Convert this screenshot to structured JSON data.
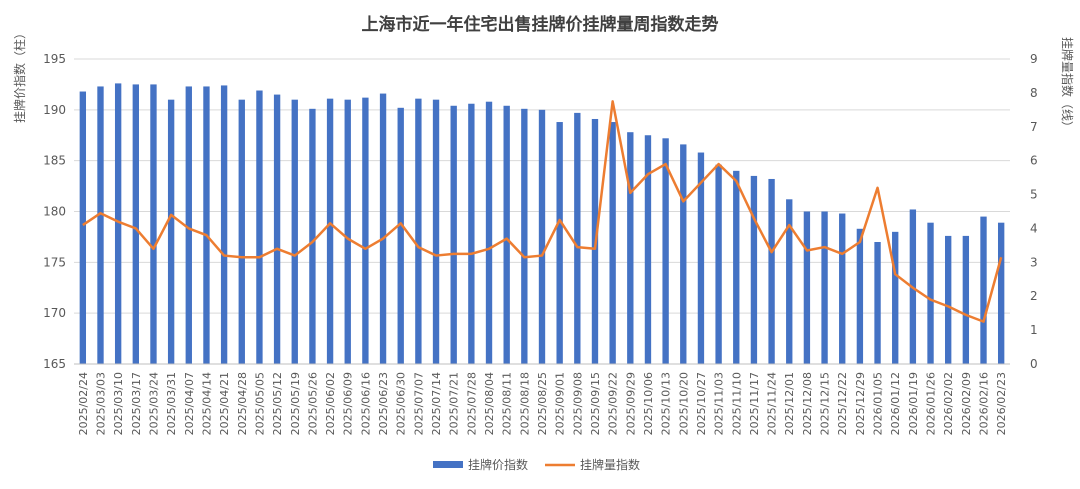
{
  "chart_data": {
    "type": "bar+line",
    "title": "上海市近一年住宅出售挂牌价挂牌量周指数走势",
    "ylabel_left": "挂牌价指数（柱）",
    "ylabel_right": "挂牌量指数（线）",
    "ylim_left": [
      165,
      195
    ],
    "yticks_left": [
      165,
      170,
      175,
      180,
      185,
      190,
      195
    ],
    "ylim_right": [
      0,
      9
    ],
    "yticks_right": [
      0,
      1,
      2,
      3,
      4,
      5,
      6,
      7,
      8,
      9
    ],
    "legend_position": "bottom",
    "grid": true,
    "colors": {
      "bar": "#4472C4",
      "line": "#ED7D31",
      "grid": "#D9D9D9",
      "axis_text": "#595959",
      "title": "#404040"
    },
    "categories": [
      "2025/02/24",
      "2025/03/03",
      "2025/03/10",
      "2025/03/17",
      "2025/03/24",
      "2025/03/31",
      "2025/04/07",
      "2025/04/14",
      "2025/04/21",
      "2025/04/28",
      "2025/05/05",
      "2025/05/12",
      "2025/05/19",
      "2025/05/26",
      "2025/06/02",
      "2025/06/09",
      "2025/06/16",
      "2025/06/23",
      "2025/06/30",
      "2025/07/07",
      "2025/07/14",
      "2025/07/21",
      "2025/07/28",
      "2025/08/04",
      "2025/08/11",
      "2025/08/18",
      "2025/08/25",
      "2025/09/01",
      "2025/09/08",
      "2025/09/15",
      "2025/09/22",
      "2025/09/29",
      "2025/10/06",
      "2025/10/13",
      "2025/10/20",
      "2025/10/27",
      "2025/11/03",
      "2025/11/10",
      "2025/11/17",
      "2025/11/24",
      "2025/12/01",
      "2025/12/08",
      "2025/12/15",
      "2025/12/22",
      "2025/12/29",
      "2026/01/05",
      "2026/01/12",
      "2026/01/19",
      "2026/01/26",
      "2026/02/02",
      "2026/02/09",
      "2026/02/16",
      "2026/02/23"
    ],
    "series": [
      {
        "name": "挂牌价指数",
        "type": "bar",
        "axis": "left",
        "values": [
          191.8,
          192.3,
          192.6,
          192.5,
          192.5,
          191.0,
          192.3,
          192.3,
          192.4,
          191.0,
          191.9,
          191.5,
          191.0,
          190.1,
          191.1,
          191.0,
          191.2,
          191.6,
          190.2,
          191.1,
          191.0,
          190.4,
          190.6,
          190.8,
          190.4,
          190.1,
          190.0,
          188.8,
          189.7,
          189.1,
          188.8,
          187.8,
          187.5,
          187.2,
          186.6,
          185.8,
          184.6,
          184.0,
          183.5,
          183.2,
          181.2,
          180.0,
          180.0,
          179.8,
          178.3,
          177.0,
          178.0,
          180.2,
          178.9,
          177.6,
          177.6,
          179.5,
          178.9
        ]
      },
      {
        "name": "挂牌量指数",
        "type": "line",
        "axis": "right",
        "values": [
          4.1,
          4.45,
          4.2,
          4.0,
          3.4,
          4.4,
          4.0,
          3.8,
          3.2,
          3.15,
          3.15,
          3.4,
          3.2,
          3.6,
          4.15,
          3.7,
          3.4,
          3.7,
          4.15,
          3.45,
          3.2,
          3.25,
          3.25,
          3.4,
          3.7,
          3.15,
          3.2,
          4.25,
          3.45,
          3.4,
          7.75,
          5.05,
          5.6,
          5.9,
          4.8,
          5.35,
          5.9,
          5.4,
          4.3,
          3.3,
          4.1,
          3.35,
          3.45,
          3.25,
          3.6,
          5.2,
          2.65,
          2.25,
          1.9,
          1.7,
          1.45,
          1.25,
          3.15
        ]
      }
    ]
  }
}
